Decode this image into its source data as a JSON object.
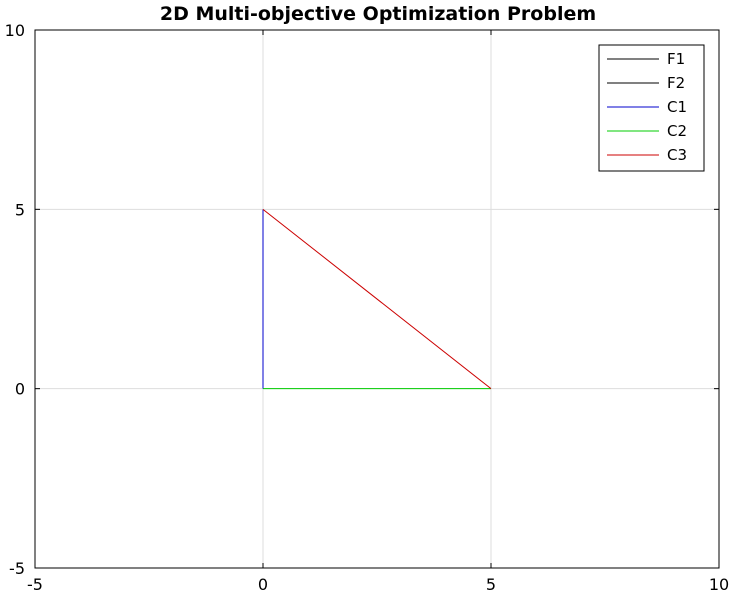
{
  "chart_data": {
    "type": "line",
    "title": "2D Multi-objective Optimization Problem",
    "xlabel": "",
    "ylabel": "",
    "xlim": [
      -5,
      10
    ],
    "ylim": [
      -5,
      10
    ],
    "xticks": [
      -5,
      0,
      5,
      10
    ],
    "yticks": [
      -5,
      0,
      5,
      10
    ],
    "grid": true,
    "legend_position": "top-right",
    "series": [
      {
        "name": "F1",
        "color": "#000000",
        "x": [
          0,
          0
        ],
        "y": [
          0,
          0
        ]
      },
      {
        "name": "F2",
        "color": "#000000",
        "x": [
          0,
          0
        ],
        "y": [
          0,
          0
        ]
      },
      {
        "name": "C1",
        "color": "#0000cc",
        "x": [
          0,
          0
        ],
        "y": [
          0,
          5
        ]
      },
      {
        "name": "C2",
        "color": "#00cc00",
        "x": [
          0,
          5
        ],
        "y": [
          0,
          0
        ]
      },
      {
        "name": "C3",
        "color": "#cc0000",
        "x": [
          0,
          5
        ],
        "y": [
          5,
          0
        ]
      }
    ]
  }
}
